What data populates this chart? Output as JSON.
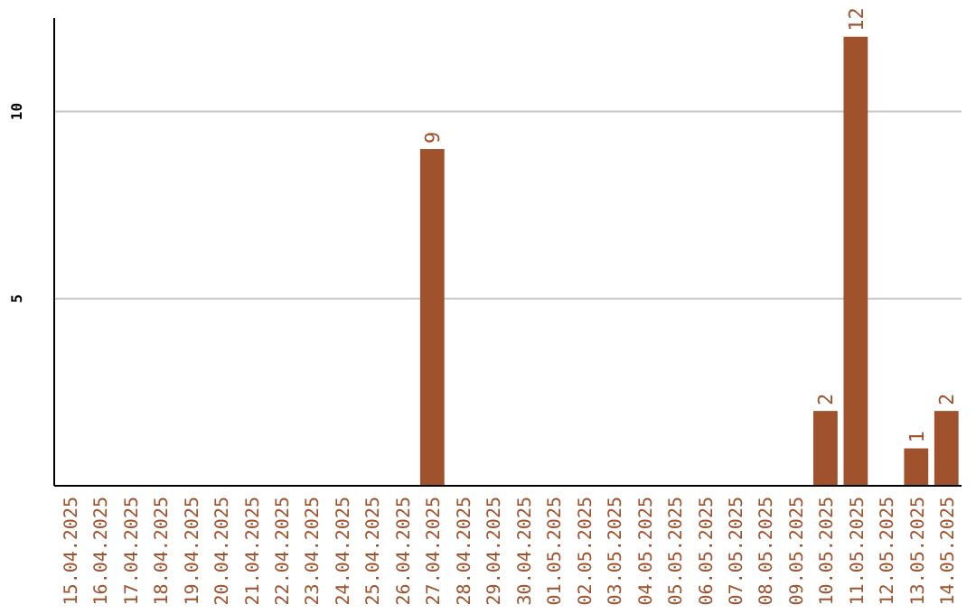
{
  "chart_data": {
    "type": "bar",
    "categories": [
      "15.04.2025",
      "16.04.2025",
      "17.04.2025",
      "18.04.2025",
      "19.04.2025",
      "20.04.2025",
      "21.04.2025",
      "22.04.2025",
      "23.04.2025",
      "24.04.2025",
      "25.04.2025",
      "26.04.2025",
      "27.04.2025",
      "28.04.2025",
      "29.04.2025",
      "30.04.2025",
      "01.05.2025",
      "02.05.2025",
      "03.05.2025",
      "04.05.2025",
      "05.05.2025",
      "06.05.2025",
      "07.05.2025",
      "08.05.2025",
      "09.05.2025",
      "10.05.2025",
      "11.05.2025",
      "12.05.2025",
      "13.05.2025",
      "14.05.2025"
    ],
    "values": [
      0,
      0,
      0,
      0,
      0,
      0,
      0,
      0,
      0,
      0,
      0,
      0,
      9,
      0,
      0,
      0,
      0,
      0,
      0,
      0,
      0,
      0,
      0,
      0,
      0,
      2,
      12,
      0,
      1,
      2
    ],
    "value_labels": [
      null,
      null,
      null,
      null,
      null,
      null,
      null,
      null,
      null,
      null,
      null,
      null,
      "9",
      null,
      null,
      null,
      null,
      null,
      null,
      null,
      null,
      null,
      null,
      null,
      null,
      "2",
      "12",
      null,
      "1",
      "2"
    ],
    "color": "#a0522d",
    "ylim": [
      0,
      12.5
    ],
    "yticks": [
      5,
      10
    ],
    "grid": "y"
  }
}
